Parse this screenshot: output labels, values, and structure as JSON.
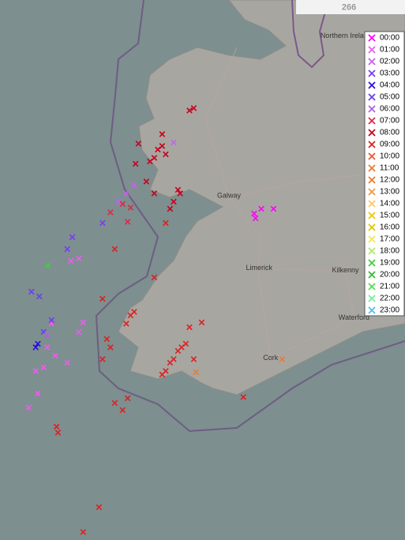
{
  "chart_data": {
    "type": "scatter",
    "xlim": [
      -12.237,
      -6.6
    ],
    "ylim": [
      50.363,
      54.923
    ],
    "map_labels": [
      {
        "text": "Galway",
        "lon": -9.05,
        "lat": 53.27
      },
      {
        "text": "Limerick",
        "lon": -8.63,
        "lat": 52.66
      },
      {
        "text": "Cork",
        "lon": -8.47,
        "lat": 51.9
      },
      {
        "text": "Kilkenny",
        "lon": -7.43,
        "lat": 52.64
      },
      {
        "text": "Waterford",
        "lon": -7.31,
        "lat": 52.24
      },
      {
        "text": "Northern Ireland",
        "lon": -7.42,
        "lat": 54.62
      }
    ],
    "road_label": {
      "text": "266",
      "lon": -7.38,
      "lat": 54.86
    },
    "series": [
      {
        "name": "00:00",
        "color": "#ff00ff",
        "lon": [
          -8.7,
          -8.6,
          -8.43,
          -8.68
        ],
        "lat": [
          53.12,
          53.16,
          53.16,
          53.08
        ]
      },
      {
        "name": "01:00",
        "color": "#f05af0",
        "lon": [
          -11.58,
          -11.47,
          -11.74,
          -11.63,
          -11.14,
          -11.3,
          -11.71,
          -11.84,
          -11.08,
          -11.25,
          -11.14,
          -11.52
        ],
        "lat": [
          51.99,
          51.92,
          51.79,
          51.82,
          52.12,
          51.86,
          51.6,
          51.48,
          52.2,
          52.72,
          52.74,
          52.19
        ]
      },
      {
        "name": "02:00",
        "color": "#c860f0",
        "lon": [
          -10.48,
          -10.37,
          -9.82,
          -10.59
        ],
        "lat": [
          53.29,
          53.36,
          53.72,
          53.22
        ]
      },
      {
        "name": "03:00",
        "color": "#7a3cf0",
        "lon": [
          -11.23,
          -11.3,
          -10.81
        ],
        "lat": [
          52.92,
          52.82,
          53.04
        ]
      },
      {
        "name": "04:00",
        "color": "#2a10e0",
        "lon": [
          -11.71,
          -11.74
        ],
        "lat": [
          52.02,
          51.99
        ]
      },
      {
        "name": "05:00",
        "color": "#6a40f0",
        "lon": [
          -11.8,
          -11.69,
          -11.52,
          -11.63
        ],
        "lat": [
          52.46,
          52.42,
          52.22,
          52.12
        ]
      },
      {
        "name": "06:00",
        "color": "#b060e0",
        "lon": [
          -11.58
        ],
        "lat": [
          52.09
        ]
      },
      {
        "name": "07:00",
        "color": "#dc2a4a",
        "lon": [
          -10.53,
          -10.42,
          -10.7,
          -10.46
        ],
        "lat": [
          53.2,
          53.17,
          53.13,
          53.05
        ]
      },
      {
        "name": "08:00",
        "color": "#c8001e",
        "lon": [
          -10.04,
          -9.98,
          -10.09,
          -10.15,
          -9.93,
          -9.76,
          -9.82,
          -9.73,
          -9.87,
          -10.09,
          -10.2,
          -9.6,
          -9.54,
          -9.98,
          -10.31,
          -10.35
        ],
        "lat": [
          53.66,
          53.69,
          53.59,
          53.56,
          53.62,
          53.32,
          53.22,
          53.29,
          53.16,
          53.29,
          53.39,
          53.99,
          54.01,
          53.79,
          53.71,
          53.54
        ]
      },
      {
        "name": "09:00",
        "color": "#dc2222",
        "lon": [
          -9.93,
          -9.87,
          -9.82,
          -9.76,
          -9.71,
          -9.65,
          -9.98,
          -9.6,
          -9.43,
          -10.42,
          -10.37,
          -10.48,
          -10.81,
          -10.75,
          -10.7,
          -10.81,
          -10.64,
          -10.53,
          -10.46,
          -11.45,
          -11.43,
          -10.86,
          -11.08,
          -10.09,
          -10.64,
          -9.93,
          -9.54,
          -8.85
        ],
        "lat": [
          51.79,
          51.86,
          51.89,
          51.96,
          51.99,
          52.02,
          51.76,
          52.16,
          52.2,
          52.26,
          52.29,
          52.19,
          52.4,
          52.06,
          51.99,
          51.89,
          51.52,
          51.46,
          51.56,
          51.32,
          51.27,
          50.64,
          50.43,
          52.58,
          52.82,
          53.04,
          51.89,
          51.57
        ]
      },
      {
        "name": "10:00",
        "color": "#ee5533",
        "lon": [],
        "lat": []
      },
      {
        "name": "11:00",
        "color": "#ee7a30",
        "lon": [
          -8.31,
          -9.51
        ],
        "lat": [
          51.89,
          51.78
        ]
      },
      {
        "name": "12:00",
        "color": "#ee7a22",
        "lon": [],
        "lat": []
      },
      {
        "name": "13:00",
        "color": "#ee9a44",
        "lon": [],
        "lat": []
      },
      {
        "name": "14:00",
        "color": "#ffc868",
        "lon": [],
        "lat": []
      },
      {
        "name": "15:00",
        "color": "#eec800",
        "lon": [],
        "lat": []
      },
      {
        "name": "16:00",
        "color": "#dcc800",
        "lon": [],
        "lat": []
      },
      {
        "name": "17:00",
        "color": "#eee855",
        "lon": [],
        "lat": []
      },
      {
        "name": "18:00",
        "color": "#aaee66",
        "lon": [],
        "lat": []
      },
      {
        "name": "19:00",
        "color": "#44cc44",
        "lon": [
          -11.57
        ],
        "lat": [
          52.68
        ]
      },
      {
        "name": "20:00",
        "color": "#33bb33",
        "lon": [],
        "lat": []
      },
      {
        "name": "21:00",
        "color": "#55dd55",
        "lon": [],
        "lat": []
      },
      {
        "name": "22:00",
        "color": "#77ee99",
        "lon": [],
        "lat": []
      },
      {
        "name": "23:00",
        "color": "#55bbee",
        "lon": [],
        "lat": []
      }
    ]
  }
}
